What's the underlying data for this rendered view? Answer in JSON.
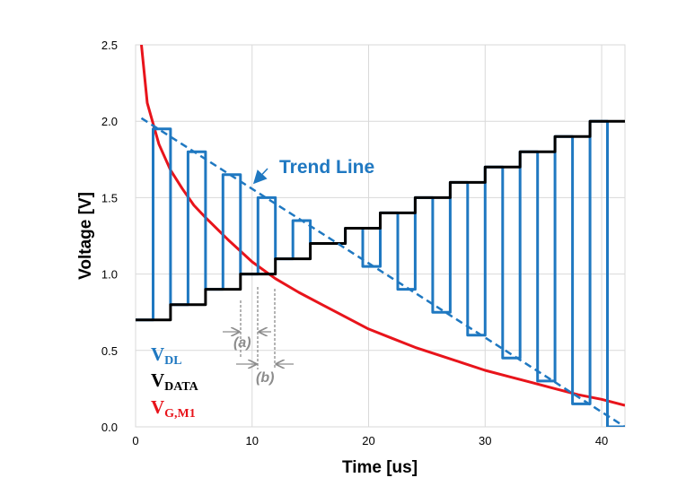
{
  "chart_data": {
    "type": "line",
    "title": "",
    "xlabel": "Time [us]",
    "ylabel": "Voltage [V]",
    "xlim": [
      0,
      42
    ],
    "ylim": [
      0,
      2.5
    ],
    "xticks": [
      "0",
      "10",
      "20",
      "30",
      "40"
    ],
    "yticks": [
      "0.0",
      "0.5",
      "1.0",
      "1.5",
      "2.0",
      "2.5"
    ],
    "grid": true,
    "legend_position": "bottom-left",
    "legend": [
      {
        "base": "V",
        "sub": "DL",
        "color": "#1f78c1"
      },
      {
        "base": "V",
        "sub": "DATA",
        "color": "#000000"
      },
      {
        "base": "V",
        "sub": "G,M1",
        "color": "#e8141b"
      }
    ],
    "series": [
      {
        "legend_index": 0,
        "color": "#1f78c1",
        "style": "solid",
        "x": [
          0,
          1.5,
          1.5,
          3.0,
          3.0,
          4.5,
          4.5,
          6.0,
          6.0,
          7.5,
          7.5,
          9.0,
          9.0,
          10.5,
          10.5,
          12.0,
          12.0,
          13.5,
          13.5,
          15.0,
          15.0,
          16.5,
          16.5,
          18.0,
          18.0,
          19.5,
          19.5,
          21.0,
          21.0,
          22.5,
          22.5,
          24.0,
          24.0,
          25.5,
          25.5,
          27.0,
          27.0,
          28.5,
          28.5,
          30.0,
          30.0,
          31.5,
          31.5,
          33.0,
          33.0,
          34.5,
          34.5,
          36.0,
          36.0,
          37.5,
          37.5,
          39.0,
          39.0,
          40.5,
          40.5,
          42.0
        ],
        "y": [
          0.7,
          0.7,
          1.95,
          1.95,
          0.8,
          0.8,
          1.8,
          1.8,
          0.9,
          0.9,
          1.65,
          1.65,
          1.0,
          1.0,
          1.5,
          1.5,
          1.1,
          1.1,
          1.35,
          1.35,
          1.2,
          1.2,
          1.2,
          1.2,
          1.3,
          1.3,
          1.05,
          1.05,
          1.4,
          1.4,
          0.9,
          0.9,
          1.5,
          1.5,
          0.75,
          0.75,
          1.6,
          1.6,
          0.6,
          0.6,
          1.7,
          1.7,
          0.45,
          0.45,
          1.8,
          1.8,
          0.3,
          0.3,
          1.9,
          1.9,
          0.15,
          0.15,
          2.0,
          2.0,
          0.0,
          0.0
        ]
      },
      {
        "legend_index": 1,
        "color": "#000000",
        "style": "solid",
        "x": [
          0,
          3,
          3,
          6,
          6,
          9,
          9,
          12,
          12,
          15,
          15,
          18,
          18,
          21,
          21,
          24,
          24,
          27,
          27,
          30,
          30,
          33,
          33,
          36,
          36,
          39,
          39,
          42
        ],
        "y": [
          0.7,
          0.7,
          0.8,
          0.8,
          0.9,
          0.9,
          1.0,
          1.0,
          1.1,
          1.1,
          1.2,
          1.2,
          1.3,
          1.3,
          1.4,
          1.4,
          1.5,
          1.5,
          1.6,
          1.6,
          1.7,
          1.7,
          1.8,
          1.8,
          1.9,
          1.9,
          2.0,
          2.0
        ]
      },
      {
        "legend_index": 2,
        "color": "#e8141b",
        "style": "solid",
        "x": [
          0.5,
          1,
          2,
          3,
          4,
          5,
          6,
          8,
          10,
          12,
          14,
          16,
          18,
          20,
          22,
          24,
          26,
          28,
          30,
          32,
          34,
          36,
          38,
          40,
          42
        ],
        "y": [
          2.5,
          2.12,
          1.85,
          1.68,
          1.56,
          1.45,
          1.37,
          1.22,
          1.08,
          0.97,
          0.88,
          0.8,
          0.72,
          0.64,
          0.58,
          0.52,
          0.47,
          0.42,
          0.37,
          0.33,
          0.29,
          0.25,
          0.21,
          0.18,
          0.14
        ]
      },
      {
        "color": "#1f78c1",
        "style": "dashed",
        "x": [
          0.5,
          42
        ],
        "y": [
          2.02,
          0.0
        ]
      }
    ],
    "annotations": [
      {
        "text": "Trend Line",
        "x": 22,
        "y": 1.72,
        "color": "#1f78c1"
      },
      {
        "text": "(a)",
        "x": 9.6,
        "y": 0.52,
        "color": "#8c8c8c"
      },
      {
        "text": "(b)",
        "x": 11.8,
        "y": 0.29,
        "color": "#8c8c8c"
      }
    ]
  }
}
